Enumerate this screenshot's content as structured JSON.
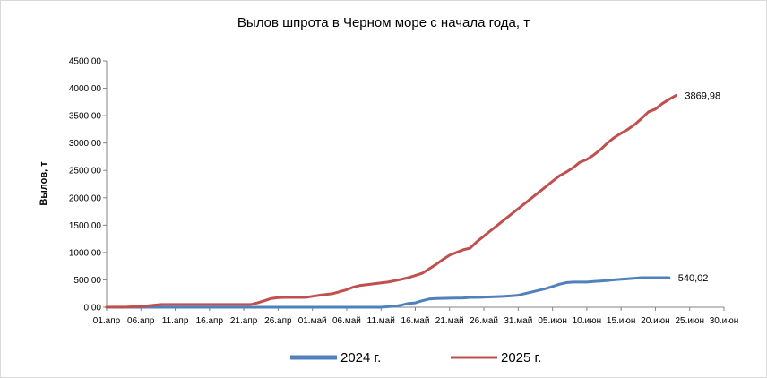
{
  "chart_data": {
    "type": "line",
    "title": "Вылов шпрота в Черном море с начала года, т",
    "xlabel": "",
    "ylabel": "Вылов, т",
    "ylim": [
      0,
      4500
    ],
    "y_ticks": [
      "0,00",
      "500,00",
      "1000,00",
      "1500,00",
      "2000,00",
      "2500,00",
      "3000,00",
      "3500,00",
      "4000,00",
      "4500,00"
    ],
    "x_domain_days": [
      0,
      90
    ],
    "x_ticks": [
      {
        "day": 0,
        "label": "01.апр"
      },
      {
        "day": 5,
        "label": "06.апр"
      },
      {
        "day": 10,
        "label": "11.апр"
      },
      {
        "day": 15,
        "label": "16.апр"
      },
      {
        "day": 20,
        "label": "21.апр"
      },
      {
        "day": 25,
        "label": "26.апр"
      },
      {
        "day": 30,
        "label": "01.май"
      },
      {
        "day": 35,
        "label": "06.май"
      },
      {
        "day": 40,
        "label": "11.май"
      },
      {
        "day": 45,
        "label": "16.май"
      },
      {
        "day": 50,
        "label": "21.май"
      },
      {
        "day": 55,
        "label": "26.май"
      },
      {
        "day": 60,
        "label": "31.май"
      },
      {
        "day": 65,
        "label": "05.июн"
      },
      {
        "day": 70,
        "label": "10.июн"
      },
      {
        "day": 75,
        "label": "15.июн"
      },
      {
        "day": 80,
        "label": "20.июн"
      },
      {
        "day": 85,
        "label": "25.июн"
      },
      {
        "day": 90,
        "label": "30.июн"
      }
    ],
    "grid": false,
    "legend_position": "bottom",
    "series": [
      {
        "name": "2024 г.",
        "color": "#4f81bd",
        "end_label": "540,02",
        "points": [
          [
            0,
            0
          ],
          [
            30,
            0
          ],
          [
            40,
            0
          ],
          [
            42,
            20
          ],
          [
            43,
            40
          ],
          [
            44,
            70
          ],
          [
            45,
            80
          ],
          [
            46,
            120
          ],
          [
            47,
            150
          ],
          [
            48,
            160
          ],
          [
            50,
            165
          ],
          [
            52,
            170
          ],
          [
            53,
            180
          ],
          [
            54,
            180
          ],
          [
            55,
            185
          ],
          [
            56,
            190
          ],
          [
            57,
            195
          ],
          [
            58,
            200
          ],
          [
            59,
            210
          ],
          [
            60,
            220
          ],
          [
            61,
            250
          ],
          [
            62,
            280
          ],
          [
            63,
            310
          ],
          [
            64,
            340
          ],
          [
            65,
            380
          ],
          [
            66,
            420
          ],
          [
            67,
            450
          ],
          [
            68,
            460
          ],
          [
            69,
            460
          ],
          [
            70,
            460
          ],
          [
            71,
            470
          ],
          [
            72,
            480
          ],
          [
            73,
            490
          ],
          [
            74,
            500
          ],
          [
            75,
            510
          ],
          [
            76,
            520
          ],
          [
            77,
            530
          ],
          [
            78,
            540
          ],
          [
            80,
            540
          ],
          [
            82,
            540.02
          ]
        ]
      },
      {
        "name": "2025 г.",
        "color": "#c0504d",
        "end_label": "3869,98",
        "points": [
          [
            0,
            0
          ],
          [
            3,
            5
          ],
          [
            5,
            15
          ],
          [
            7,
            40
          ],
          [
            8,
            50
          ],
          [
            10,
            50
          ],
          [
            15,
            50
          ],
          [
            18,
            50
          ],
          [
            20,
            50
          ],
          [
            21,
            50
          ],
          [
            22,
            80
          ],
          [
            23,
            120
          ],
          [
            24,
            160
          ],
          [
            25,
            175
          ],
          [
            26,
            180
          ],
          [
            27,
            180
          ],
          [
            28,
            180
          ],
          [
            29,
            180
          ],
          [
            30,
            200
          ],
          [
            31,
            220
          ],
          [
            33,
            250
          ],
          [
            35,
            320
          ],
          [
            36,
            370
          ],
          [
            37,
            400
          ],
          [
            39,
            430
          ],
          [
            41,
            460
          ],
          [
            43,
            510
          ],
          [
            44,
            540
          ],
          [
            45,
            580
          ],
          [
            46,
            620
          ],
          [
            47,
            700
          ],
          [
            48,
            780
          ],
          [
            49,
            870
          ],
          [
            50,
            950
          ],
          [
            51,
            1000
          ],
          [
            52,
            1050
          ],
          [
            53,
            1080
          ],
          [
            54,
            1200
          ],
          [
            55,
            1300
          ],
          [
            56,
            1400
          ],
          [
            57,
            1500
          ],
          [
            58,
            1600
          ],
          [
            59,
            1700
          ],
          [
            60,
            1800
          ],
          [
            61,
            1900
          ],
          [
            62,
            2000
          ],
          [
            63,
            2100
          ],
          [
            64,
            2200
          ],
          [
            65,
            2300
          ],
          [
            66,
            2400
          ],
          [
            67,
            2470
          ],
          [
            68,
            2550
          ],
          [
            69,
            2650
          ],
          [
            70,
            2700
          ],
          [
            71,
            2780
          ],
          [
            72,
            2880
          ],
          [
            73,
            3000
          ],
          [
            74,
            3100
          ],
          [
            75,
            3180
          ],
          [
            76,
            3250
          ],
          [
            77,
            3340
          ],
          [
            78,
            3450
          ],
          [
            79,
            3570
          ],
          [
            80,
            3620
          ],
          [
            81,
            3720
          ],
          [
            82,
            3800
          ],
          [
            83,
            3869.98
          ]
        ]
      }
    ]
  }
}
